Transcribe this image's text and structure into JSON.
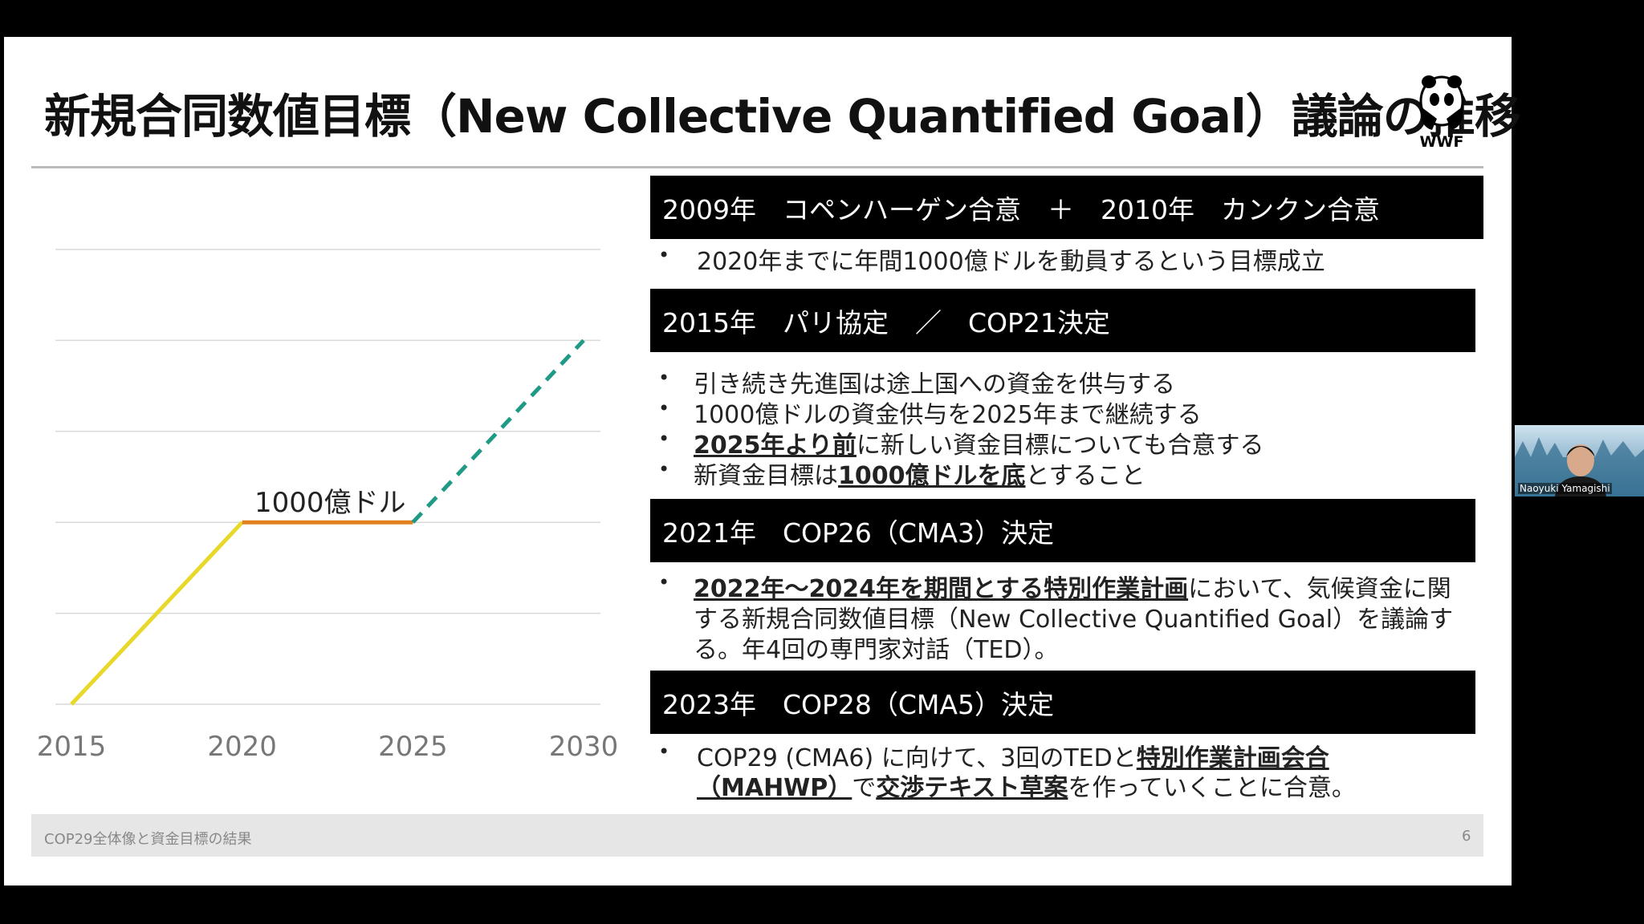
{
  "slide": {
    "title": "新規合同数値目標（New Collective Quantified Goal）議論の推移",
    "logo": "WWF",
    "footer": "COP29全体像と資金目標の結果",
    "page_number": "6"
  },
  "chart_data": {
    "type": "line",
    "categories": [
      "2015",
      "2020",
      "2025",
      "2030"
    ],
    "annotation": "1000億ドル",
    "ylim": [
      0,
      2500
    ],
    "yticks": [
      0,
      500,
      1000,
      1500,
      2000,
      2500
    ],
    "ytick_labels": false,
    "grid": true,
    "series": [
      {
        "color": "#e8d82a",
        "dashed": false,
        "values": [
          0,
          1000,
          null,
          null
        ]
      },
      {
        "color": "#e0801e",
        "dashed": false,
        "values": [
          null,
          1000,
          1000,
          null
        ]
      },
      {
        "color": "#1f9a86",
        "dashed": true,
        "values": [
          null,
          null,
          1000,
          2000
        ]
      }
    ]
  },
  "sections": [
    {
      "header": "2009年　コペンハーゲン合意　＋　2010年　カンクン合意",
      "bullets": [
        [
          [
            {
              "text": "2020年までに年間1000億ドルを動員するという目標成立"
            }
          ]
        ]
      ]
    },
    {
      "header": "2015年　パリ協定　／　COP21決定",
      "bullets": [
        [
          [
            {
              "text": "引き続き先進国は途上国への資金を供与する"
            }
          ]
        ],
        [
          [
            {
              "text": "1000億ドルの資金供与を2025年まで継続する"
            }
          ]
        ],
        [
          [
            {
              "text": "2025年より前",
              "bold": true
            },
            {
              "text": "に新しい資金目標についても合意する"
            }
          ]
        ],
        [
          [
            {
              "text": "新資金目標は"
            },
            {
              "text": "1000億ドルを底",
              "bold": true
            },
            {
              "text": "とすること"
            }
          ]
        ]
      ]
    },
    {
      "header": "2021年　COP26（CMA3）決定",
      "bullets": [
        [
          [
            {
              "text": "2022年～2024年を期間とする特別作業計画",
              "bold": true
            },
            {
              "text": "において、気候資金に関"
            }
          ],
          [
            {
              "text": "する新規合同数値目標（New Collective Quantified Goal）を議論す"
            }
          ],
          [
            {
              "text": "る。年4回の専門家対話（TED）。"
            }
          ]
        ]
      ]
    },
    {
      "header": "2023年　COP28（CMA5）決定",
      "bullets": [
        [
          [
            {
              "text": "COP29 (CMA6) に向けて、3回のTEDと"
            },
            {
              "text": "特別作業計画会合",
              "bold": true
            }
          ],
          [
            {
              "text": "（MAHWP）",
              "bold": true
            },
            {
              "text": "で"
            },
            {
              "text": "交渉テキスト草案",
              "bold": true
            },
            {
              "text": "を作っていくことに合意。"
            }
          ]
        ]
      ]
    }
  ],
  "video": {
    "participant": "Naoyuki Yamagishi"
  }
}
